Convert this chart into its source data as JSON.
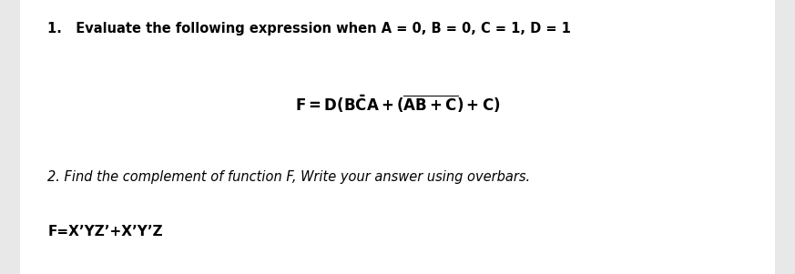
{
  "background_color": "#e8e8e8",
  "inner_bg_color": "#ffffff",
  "line1_prefix": "1.",
  "line1_body": "   Evaluate the following expression when A = 0, B = 0, C = 1, D = 1",
  "line1_fontsize": 10.5,
  "formula": "$\\mathbf{F = D(B\\bar{C}A+(\\overline{AB+C})+C)}$",
  "formula_fontsize": 12,
  "line2_text": "2. Find the complement of function F, Write your answer using overbars.",
  "line2_fontsize": 10.5,
  "line3_text": "F=X’YZ’+X’Y’Z",
  "line3_fontsize": 11,
  "text_color": "#1a1a2e"
}
